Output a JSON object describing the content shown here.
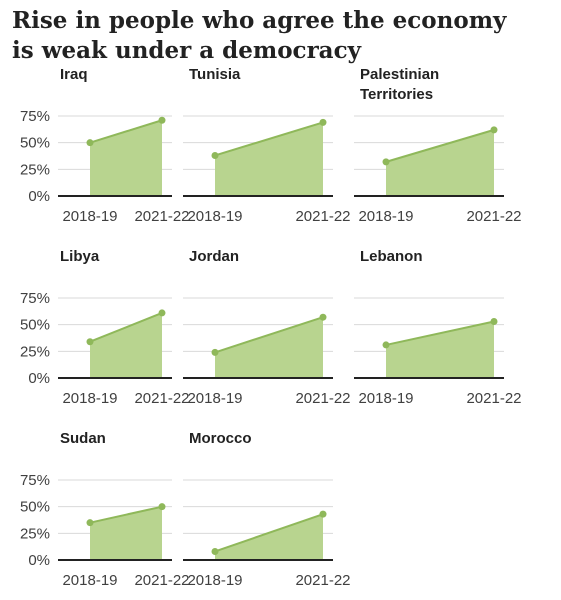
{
  "title": "Rise in people who agree the economy is weak under a democracy",
  "colors": {
    "area": "#b8d48f",
    "line": "#8fb85a",
    "grid": "#d9d9d9",
    "axis": "#222222",
    "text": "#404040"
  },
  "chart_data": {
    "type": "area",
    "x": [
      "2018-19",
      "2021-22"
    ],
    "y_ticks": [
      "75%",
      "50%",
      "25%",
      "0%"
    ],
    "y_tick_values": [
      75,
      50,
      25,
      0
    ],
    "ylim": [
      0,
      75
    ],
    "grid": true,
    "panels": [
      {
        "name": "Iraq",
        "values": [
          50,
          71
        ]
      },
      {
        "name": "Tunisia",
        "values": [
          38,
          69
        ]
      },
      {
        "name": "Palestinian Territories",
        "values": [
          32,
          62
        ]
      },
      {
        "name": "Libya",
        "values": [
          34,
          61
        ]
      },
      {
        "name": "Jordan",
        "values": [
          24,
          57
        ]
      },
      {
        "name": "Lebanon",
        "values": [
          31,
          53
        ]
      },
      {
        "name": "Sudan",
        "values": [
          35,
          50
        ]
      },
      {
        "name": "Morocco",
        "values": [
          8,
          43
        ]
      }
    ]
  }
}
